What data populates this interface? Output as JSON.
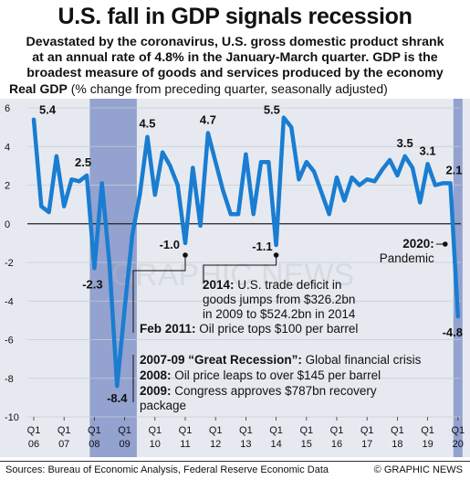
{
  "title": "U.S. fall in GDP signals recession",
  "subtitle_lines": [
    "Devastated by the coronavirus, U.S. gross domestic product shrank",
    "at an annual rate of 4.8% in the January-March quarter. GDP is the",
    "broadest measure of goods and services produced by the economy"
  ],
  "chart_header": {
    "bold": "Real GDP",
    "rest": " (% change from preceding quarter, seasonally adjusted)"
  },
  "colors": {
    "line": "#1a7dd1",
    "recession_band": "#93a2cf",
    "panel": "#e6eaf0"
  },
  "chart_data": {
    "type": "line",
    "ylabel": "Real GDP (% change from preceding quarter, seasonally adjusted)",
    "ylim": [
      -10,
      6
    ],
    "yticks": [
      -10,
      -8,
      -6,
      -4,
      -2,
      0,
      2,
      4,
      6
    ],
    "xtick_labels": [
      {
        "q": "Q1",
        "y": "06"
      },
      {
        "q": "Q1",
        "y": "07"
      },
      {
        "q": "Q1",
        "y": "08"
      },
      {
        "q": "Q1",
        "y": "09"
      },
      {
        "q": "Q1",
        "y": "10"
      },
      {
        "q": "Q1",
        "y": "11"
      },
      {
        "q": "Q1",
        "y": "12"
      },
      {
        "q": "Q1",
        "y": "13"
      },
      {
        "q": "Q1",
        "y": "14"
      },
      {
        "q": "Q1",
        "y": "15"
      },
      {
        "q": "Q1",
        "y": "16"
      },
      {
        "q": "Q1",
        "y": "17"
      },
      {
        "q": "Q1",
        "y": "18"
      },
      {
        "q": "Q1",
        "y": "19"
      },
      {
        "q": "Q1",
        "y": "20"
      }
    ],
    "quarters": [
      "06Q1",
      "06Q2",
      "06Q3",
      "06Q4",
      "07Q1",
      "07Q2",
      "07Q3",
      "07Q4",
      "08Q1",
      "08Q2",
      "08Q3",
      "08Q4",
      "09Q1",
      "09Q2",
      "09Q3",
      "09Q4",
      "10Q1",
      "10Q2",
      "10Q3",
      "10Q4",
      "11Q1",
      "11Q2",
      "11Q3",
      "11Q4",
      "12Q1",
      "12Q2",
      "12Q3",
      "12Q4",
      "13Q1",
      "13Q2",
      "13Q3",
      "13Q4",
      "14Q1",
      "14Q2",
      "14Q3",
      "14Q4",
      "15Q1",
      "15Q2",
      "15Q3",
      "15Q4",
      "16Q1",
      "16Q2",
      "16Q3",
      "16Q4",
      "17Q1",
      "17Q2",
      "17Q3",
      "17Q4",
      "18Q1",
      "18Q2",
      "18Q3",
      "18Q4",
      "19Q1",
      "19Q2",
      "19Q3",
      "19Q4",
      "20Q1"
    ],
    "values": [
      5.4,
      0.9,
      0.6,
      3.5,
      0.9,
      2.3,
      2.2,
      2.5,
      -2.3,
      2.1,
      -2.1,
      -8.4,
      -4.4,
      -0.6,
      1.5,
      4.5,
      1.5,
      3.7,
      3.0,
      2.0,
      -1.0,
      2.9,
      -0.1,
      4.7,
      3.2,
      1.7,
      0.5,
      0.5,
      3.6,
      0.5,
      3.2,
      3.2,
      -1.1,
      5.5,
      5.0,
      2.3,
      3.2,
      2.7,
      1.6,
      0.5,
      2.4,
      1.2,
      2.4,
      2.0,
      2.3,
      2.2,
      2.8,
      3.3,
      2.5,
      3.5,
      2.9,
      1.1,
      3.1,
      2.0,
      2.1,
      2.1,
      -4.8
    ],
    "recession_bands": [
      [
        "08Q1",
        "09Q2"
      ],
      [
        "20Q1",
        "20Q1"
      ]
    ],
    "data_labels": [
      {
        "q": "06Q1",
        "text": "5.4"
      },
      {
        "q": "07Q4",
        "text": "2.5"
      },
      {
        "q": "08Q1",
        "text": "-2.3"
      },
      {
        "q": "08Q4",
        "text": "-8.4"
      },
      {
        "q": "09Q4",
        "text": "4.5"
      },
      {
        "q": "11Q1",
        "text": "-1.0"
      },
      {
        "q": "11Q4",
        "text": "4.7"
      },
      {
        "q": "14Q1",
        "text": "-1.1"
      },
      {
        "q": "14Q2",
        "text": "5.5"
      },
      {
        "q": "18Q2",
        "text": "3.5"
      },
      {
        "q": "19Q1",
        "text": "3.1"
      },
      {
        "q": "19Q4",
        "text": "2.1"
      },
      {
        "q": "20Q1",
        "text": "-4.8"
      }
    ],
    "annotations": [
      {
        "q": "20Q1",
        "bold": "2020:",
        "rest": "",
        "line2": "Pandemic"
      },
      {
        "q": "14Q1",
        "bold": "2014:",
        "rest": " U.S. trade deficit in",
        "line2": "goods jumps from $326.2bn",
        "line3": "in 2009 to $524.2bn in 2014"
      },
      {
        "q": "11Q1",
        "bold": "Feb 2011:",
        "rest": " Oil price tops $100 per barrel"
      },
      {
        "q": "08Q4",
        "bold": "2007-09 “Great Recession”:",
        "rest": " Global financial crisis"
      },
      {
        "q": "08Q4",
        "bold": "2008:",
        "rest": " Oil price leaps to over $145 per barrel"
      },
      {
        "q": "08Q4",
        "bold": "2009:",
        "rest": " Congress approves $787bn recovery",
        "line2": "package"
      }
    ]
  },
  "source": "Sources: Bureau of Economic Analysis, Federal Reserve Economic Data",
  "credit": "© GRAPHIC NEWS",
  "watermark": "GRAPHIC NEWS"
}
